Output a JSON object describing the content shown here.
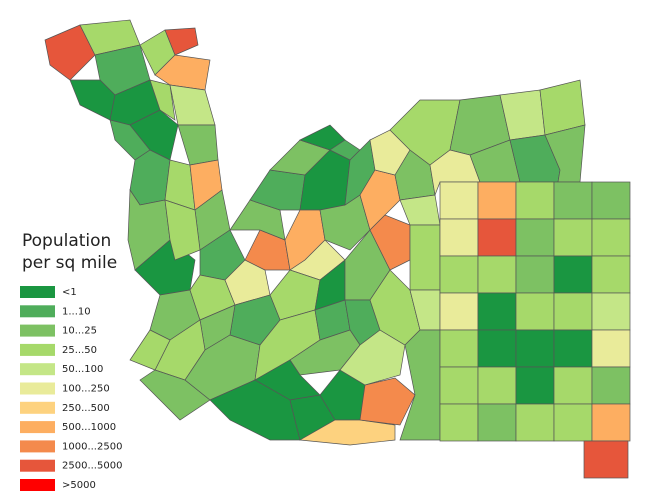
{
  "legend": {
    "title": [
      "Population",
      "per sq mile"
    ],
    "items": [
      {
        "label": "<1",
        "color": "#1a9641"
      },
      {
        "label": "1...10",
        "color": "#4fad5b"
      },
      {
        "label": "10...25",
        "color": "#7dc163"
      },
      {
        "label": "25...50",
        "color": "#a6d96a"
      },
      {
        "label": "50...100",
        "color": "#c4e687"
      },
      {
        "label": "100...250",
        "color": "#e9eb9a"
      },
      {
        "label": "250...500",
        "color": "#fdd27f"
      },
      {
        "label": "500...1000",
        "color": "#fdae61"
      },
      {
        "label": "1000...2500",
        "color": "#f48a4c"
      },
      {
        "label": "2500...5000",
        "color": "#e6563b"
      },
      {
        "label": ">5000",
        "color": "#ff0000"
      }
    ]
  }
}
